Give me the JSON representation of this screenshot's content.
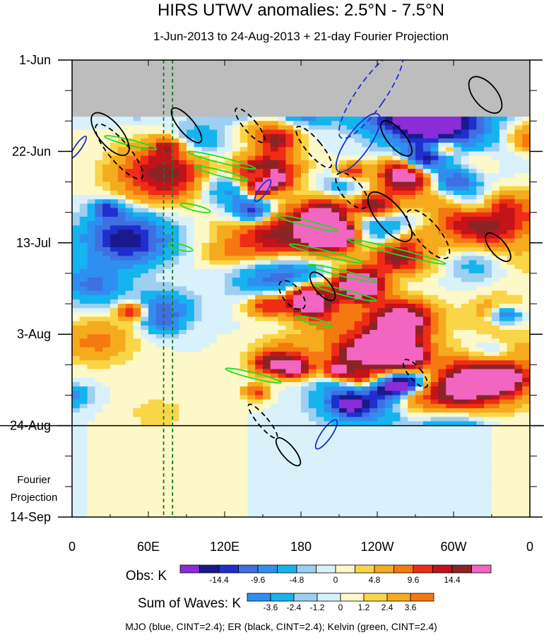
{
  "chart_data": {
    "type": "heatmap",
    "title": "HIRS UTWV anomalies: 2.5°N - 7.5°N",
    "subtitle": "1-Jun-2013 to 24-Aug-2013 + 21-day Fourier Projection",
    "x_tick_labels": [
      "0",
      "60E",
      "120E",
      "180",
      "120W",
      "60W",
      "0"
    ],
    "x_ticks_deg_east": [
      0,
      60,
      120,
      180,
      240,
      300,
      360
    ],
    "xlim": [
      0,
      360
    ],
    "y_tick_labels": [
      "1-Jun",
      "22-Jun",
      "13-Jul",
      "3-Aug",
      "24-Aug",
      "14-Sep"
    ],
    "y_ticks_day": [
      0,
      21,
      42,
      63,
      84,
      105
    ],
    "ylim_day": [
      0,
      105
    ],
    "projection_label": [
      "Fourier",
      "Projection"
    ],
    "obs_end_day": 84,
    "missing_data_until_day": 13,
    "reference_lines_deg_east": [
      72,
      79
    ],
    "obs_colorbar": {
      "label": "Obs: K",
      "tick_labels": [
        "-14.4",
        "-9.6",
        "-4.8",
        "0",
        "4.8",
        "9.6",
        "14.4"
      ],
      "colors": [
        "#8c2bd8",
        "#1a1a8c",
        "#1f2fcf",
        "#3f6fe0",
        "#2f8ff0",
        "#16b4ef",
        "#9dcff2",
        "#d9f1fb",
        "#fdf8c8",
        "#f9d548",
        "#f6ab1e",
        "#f57810",
        "#ef2d16",
        "#c2121a",
        "#8b2424",
        "#f266c1"
      ]
    },
    "waves_colorbar": {
      "label": "Sum of Waves: K",
      "tick_labels": [
        "-3.6",
        "-2.4",
        "-1.2",
        "0",
        "1.2",
        "2.4",
        "3.6"
      ],
      "colors": [
        "#2f8ff0",
        "#16b4ef",
        "#9dcff2",
        "#d9f1fb",
        "#fdf8c8",
        "#f9d548",
        "#f6ab1e",
        "#f57810"
      ]
    },
    "footnote": "MJO (blue, CINT=2.4); ER (black, CINT=2.4); Kelvin (green, CINT=2.4)",
    "contour_colors": {
      "mjo": "#1f2fcf",
      "er": "#000000",
      "kelvin": "#22dd22",
      "reference": "#1a7a1a"
    },
    "missing_color": "#bdbdbd"
  }
}
